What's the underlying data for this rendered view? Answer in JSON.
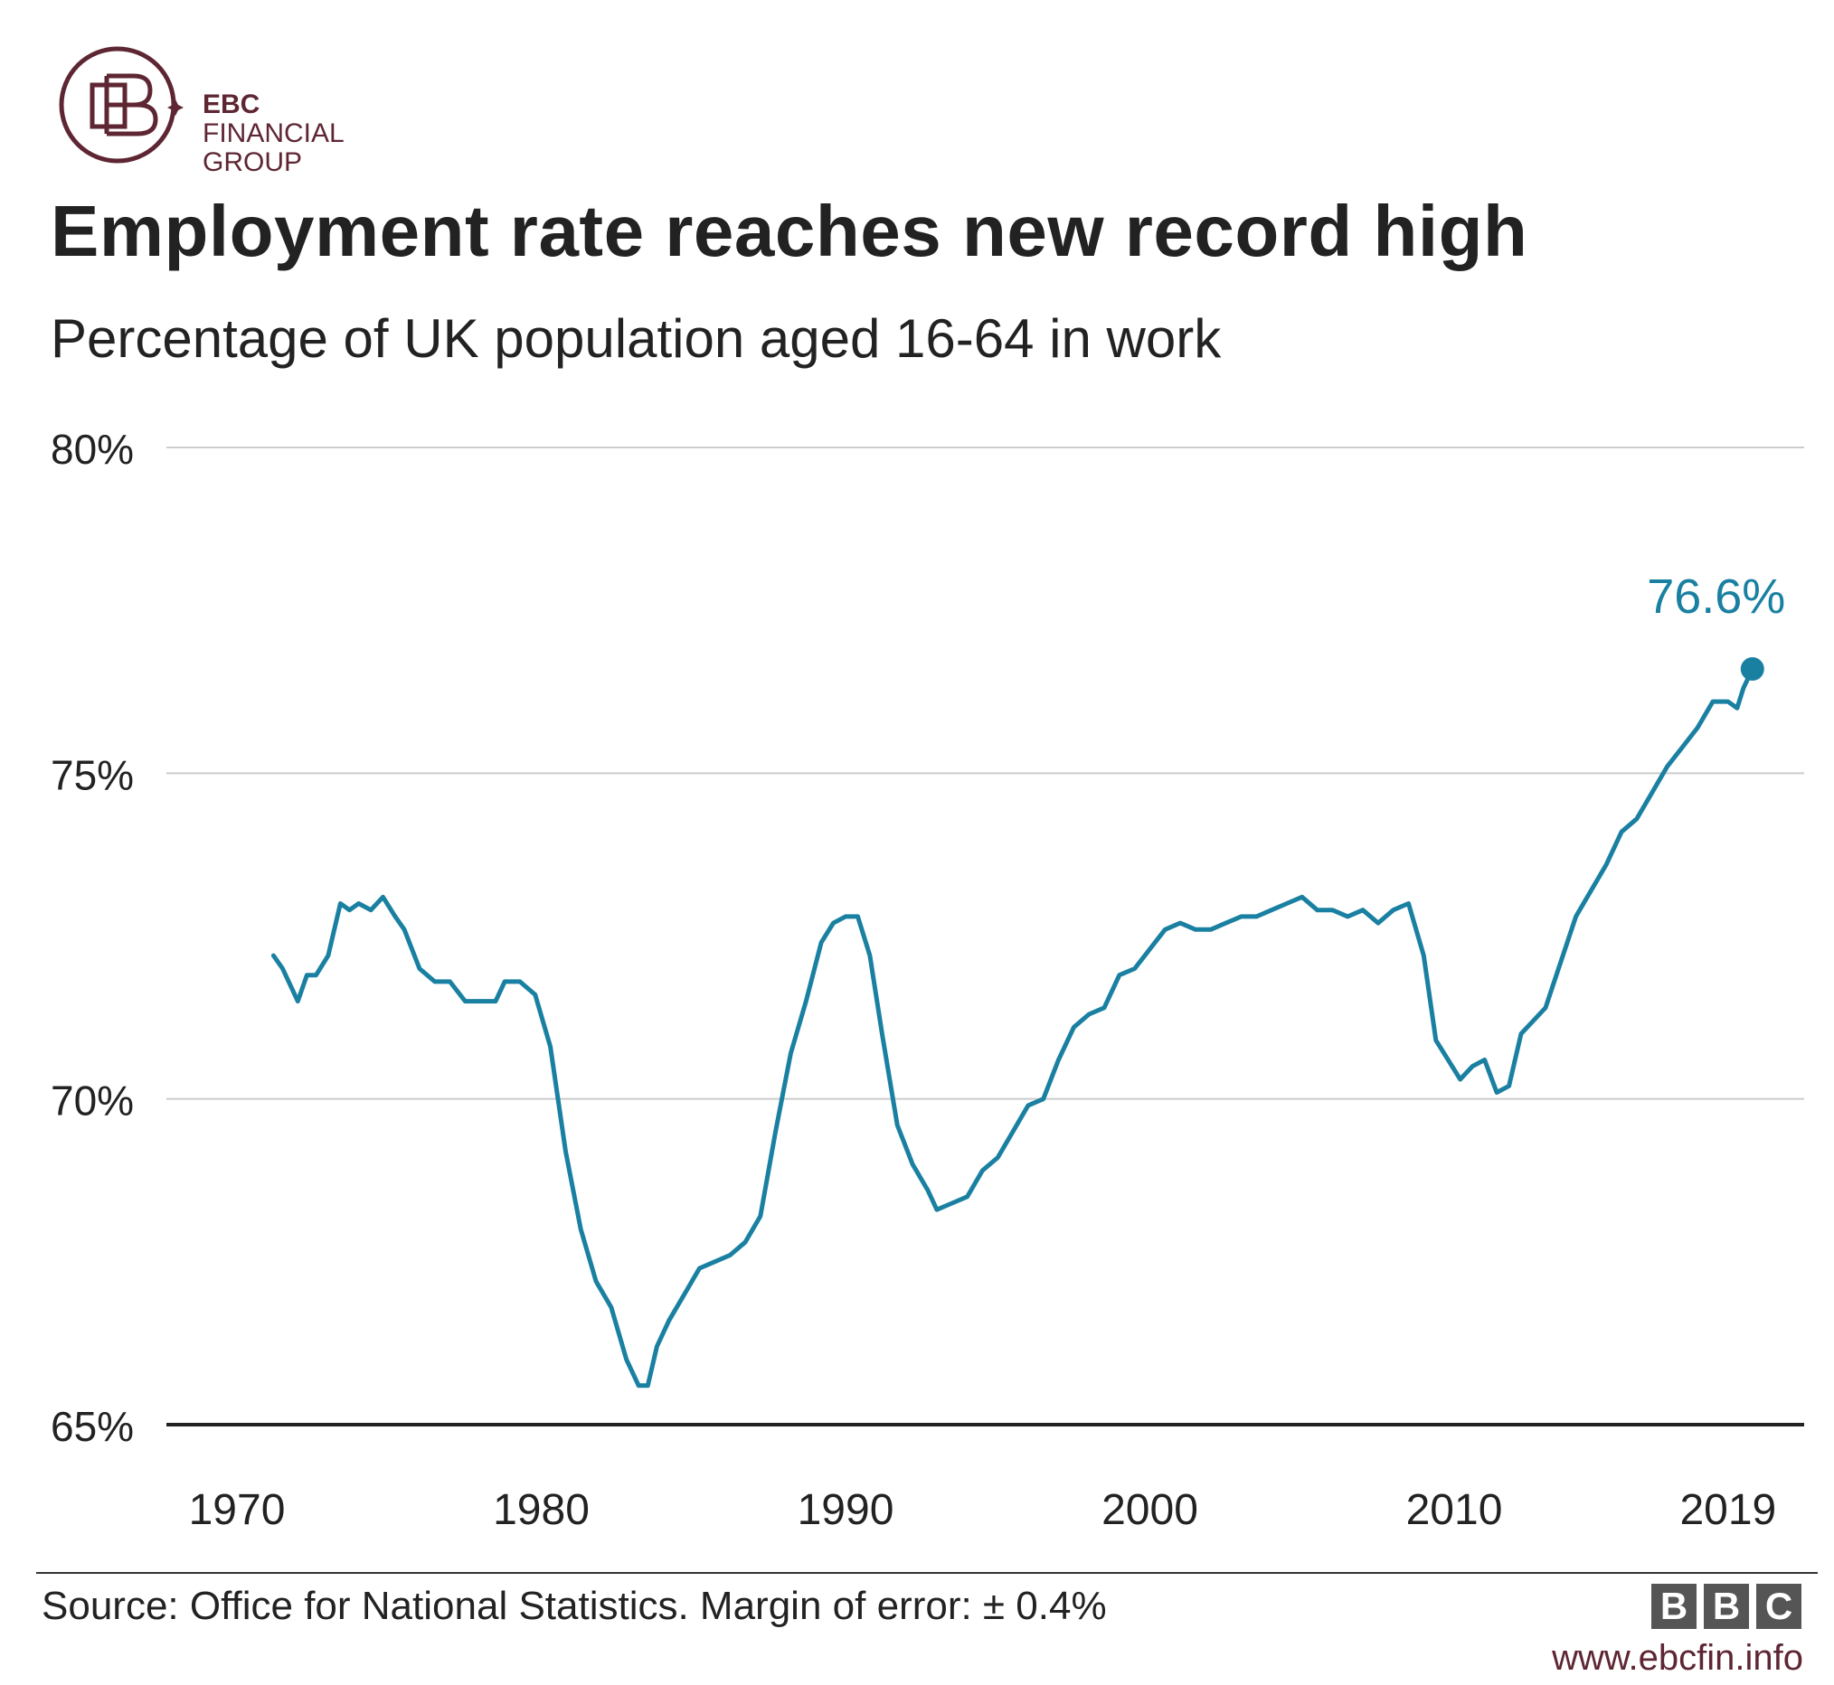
{
  "logo": {
    "line1": "EBC",
    "line2": "FINANCIAL",
    "line3": "GROUP",
    "color": "#5e2633"
  },
  "header": {
    "title": "Employment rate reaches new record high",
    "subtitle": "Percentage of UK population aged 16-64 in work"
  },
  "chart_data": {
    "type": "line",
    "title": "Employment rate reaches new record high",
    "subtitle": "Percentage of UK population aged 16-64 in work",
    "xlabel": "",
    "ylabel": "",
    "ylim": [
      65,
      80
    ],
    "xlim": [
      1970,
      2022.3
    ],
    "y_ticks": [
      80,
      75,
      70,
      65
    ],
    "y_tick_labels": [
      "80%",
      "75%",
      "70%",
      "65%"
    ],
    "x_ticks": [
      1970,
      1980,
      1990,
      2000,
      2010,
      2019
    ],
    "x_tick_labels": [
      "1970",
      "1980",
      "1990",
      "2000",
      "2010",
      "2019"
    ],
    "grid": true,
    "line_color": "#1a80a1",
    "annotation": {
      "text": "76.6%",
      "x": 2019.8,
      "y": 76.6
    },
    "series": [
      {
        "x": [
          1971.2,
          1971.5,
          1972.0,
          1972.3,
          1972.6,
          1973.0,
          1973.4,
          1973.7,
          1974.0,
          1974.4,
          1974.8,
          1975.2,
          1975.5,
          1976.0,
          1976.5,
          1977.0,
          1977.5,
          1978.0,
          1978.5,
          1978.8,
          1979.3,
          1979.8,
          1980.3,
          1980.8,
          1981.3,
          1981.8,
          1982.3,
          1982.8,
          1983.2,
          1983.5,
          1983.8,
          1984.2,
          1984.7,
          1985.2,
          1985.7,
          1986.2,
          1986.7,
          1987.2,
          1987.7,
          1988.2,
          1988.7,
          1989.2,
          1989.6,
          1990.0,
          1990.4,
          1990.8,
          1991.2,
          1991.7,
          1992.2,
          1992.7,
          1993.0,
          1993.5,
          1994.0,
          1994.5,
          1995.0,
          1995.5,
          1996.0,
          1996.5,
          1997.0,
          1997.5,
          1998.0,
          1998.5,
          1999.0,
          1999.5,
          2000.0,
          2000.5,
          2001.0,
          2001.5,
          2002.0,
          2002.5,
          2003.0,
          2003.5,
          2004.0,
          2004.5,
          2005.0,
          2005.5,
          2006.0,
          2006.5,
          2007.0,
          2007.5,
          2008.0,
          2008.5,
          2009.0,
          2009.4,
          2009.8,
          2010.2,
          2010.6,
          2011.0,
          2011.4,
          2011.8,
          2012.2,
          2012.6,
          2013.0,
          2013.5,
          2014.0,
          2014.5,
          2015.0,
          2015.5,
          2016.0,
          2016.5,
          2017.0,
          2017.5,
          2018.0,
          2018.5,
          2019.0,
          2019.3,
          2019.5,
          2019.8
        ],
        "y": [
          72.2,
          72.0,
          71.5,
          71.9,
          71.9,
          72.2,
          73.0,
          72.9,
          73.0,
          72.9,
          73.1,
          72.8,
          72.6,
          72.0,
          71.8,
          71.8,
          71.5,
          71.5,
          71.5,
          71.8,
          71.8,
          71.6,
          70.8,
          69.2,
          68.0,
          67.2,
          66.8,
          66.0,
          65.6,
          65.6,
          66.2,
          66.6,
          67.0,
          67.4,
          67.5,
          67.6,
          67.8,
          68.2,
          69.5,
          70.7,
          71.5,
          72.4,
          72.7,
          72.8,
          72.8,
          72.2,
          71.0,
          69.6,
          69.0,
          68.6,
          68.3,
          68.4,
          68.5,
          68.9,
          69.1,
          69.5,
          69.9,
          70.0,
          70.6,
          71.1,
          71.3,
          71.4,
          71.9,
          72.0,
          72.3,
          72.6,
          72.7,
          72.6,
          72.6,
          72.7,
          72.8,
          72.8,
          72.9,
          73.0,
          73.1,
          72.9,
          72.9,
          72.8,
          72.9,
          72.7,
          72.9,
          73.0,
          72.2,
          70.9,
          70.6,
          70.3,
          70.5,
          70.6,
          70.1,
          70.2,
          71.0,
          71.2,
          71.4,
          72.1,
          72.8,
          73.2,
          73.6,
          74.1,
          74.3,
          74.7,
          75.1,
          75.4,
          75.7,
          76.1,
          76.1,
          76.0,
          76.3,
          76.6
        ]
      }
    ]
  },
  "footer": {
    "source": "Source: Office for National Statistics. Margin of error: ± 0.4%",
    "bbc_letters": [
      "B",
      "B",
      "C"
    ],
    "url": "www.ebcfin.info"
  }
}
